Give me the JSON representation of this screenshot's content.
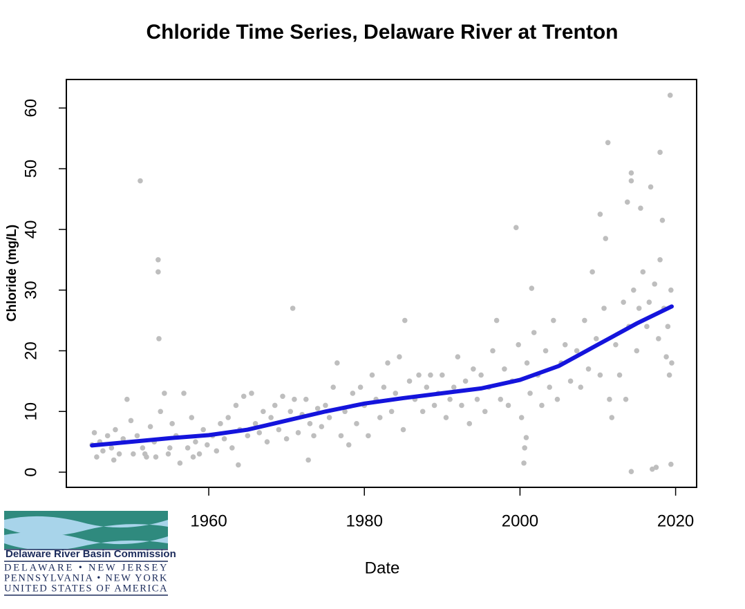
{
  "chart_data": {
    "type": "scatter",
    "title": "Chloride Time Series, Delaware River at Trenton",
    "x_label": "Date",
    "y_label": "Chloride (mg/L)",
    "xlim": [
      1941.7,
      2022.7
    ],
    "xticks": [
      1960,
      1980,
      2000,
      2020
    ],
    "ylim": [
      -2.5,
      64.7
    ],
    "yticks": [
      0,
      10,
      20,
      30,
      40,
      50,
      60
    ],
    "series": [
      {
        "type": "scatter",
        "color": "#bebebe",
        "x": [
          1945.0,
          1945.3,
          1945.6,
          1946.0,
          1946.4,
          1947.0,
          1947.5,
          1948.0,
          1948.5,
          1949.0,
          1949.5,
          1950.0,
          1950.3,
          1950.8,
          1951.5,
          1952.0,
          1952.5,
          1953.0,
          1953.8,
          1954.3,
          1954.8,
          1955.3,
          1955.8,
          1956.3,
          1956.8,
          1957.3,
          1957.8,
          1958.3,
          1958.8,
          1959.3,
          1959.8,
          1960.5,
          1961.0,
          1961.5,
          1962.0,
          1962.5,
          1963.0,
          1963.5,
          1964.0,
          1964.5,
          1965.0,
          1965.5,
          1966.0,
          1966.5,
          1967.0,
          1967.5,
          1968.0,
          1968.5,
          1969.0,
          1969.5,
          1970.0,
          1970.5,
          1971.0,
          1971.5,
          1972.0,
          1972.5,
          1973.0,
          1973.5,
          1974.0,
          1974.5,
          1975.0,
          1975.5,
          1976.0,
          1976.5,
          1977.0,
          1977.5,
          1978.0,
          1978.5,
          1979.0,
          1979.5,
          1980.0,
          1980.5,
          1981.0,
          1981.5,
          1982.0,
          1982.5,
          1983.0,
          1983.5,
          1984.0,
          1984.5,
          1985.0,
          1985.8,
          1986.5,
          1987.0,
          1987.5,
          1988.0,
          1988.5,
          1989.0,
          1989.5,
          1990.0,
          1990.5,
          1991.0,
          1991.5,
          1992.0,
          1992.5,
          1993.0,
          1993.5,
          1994.0,
          1994.5,
          1995.0,
          1995.5,
          1996.0,
          1996.5,
          1997.0,
          1997.5,
          1998.0,
          1998.5,
          1999.0,
          1999.8,
          2000.2,
          2000.9,
          2001.3,
          2001.8,
          2002.3,
          2002.8,
          2003.3,
          2003.8,
          2004.3,
          2004.8,
          2005.3,
          2005.8,
          2006.5,
          2007.3,
          2007.8,
          2008.3,
          2008.8,
          2009.3,
          2009.8,
          2010.3,
          2010.8,
          2011.5,
          2011.8,
          2012.3,
          2012.8,
          2013.3,
          2013.6,
          2014.0,
          2014.6,
          2015.0,
          2015.3,
          2015.8,
          2016.3,
          2016.6,
          2017.3,
          2017.8,
          2018.0,
          2018.5,
          2018.8,
          2019.0,
          2019.2,
          2019.4,
          2019.5,
          1947.8,
          1951.8,
          1953.2,
          1955.0,
          1958.0,
          1951.2,
          1953.5,
          1953.5,
          1953.6,
          1970.8,
          1985.2,
          1999.5,
          2011.3,
          2014.3,
          2014.3,
          2015.5,
          2016.8,
          2018.0,
          2019.3,
          2014.3,
          2017.0,
          2017.5,
          2019.4,
          2000.5,
          2000.6,
          2000.8,
          2001.5,
          2010.3,
          2011.0,
          2013.8,
          2018.3,
          1972.8,
          1963.8
        ],
        "values": [
          4.5,
          6.5,
          2.5,
          5,
          3.5,
          6,
          4,
          7,
          3,
          5.5,
          12,
          8.5,
          3,
          6,
          4,
          2.5,
          7.5,
          5,
          10,
          13,
          3,
          8,
          6,
          1.5,
          13,
          4,
          9,
          5,
          3,
          7,
          4.5,
          6,
          3.5,
          8,
          5.5,
          9,
          4,
          11,
          7,
          12.5,
          6,
          13,
          8,
          6.5,
          10,
          5,
          9,
          11,
          7,
          12.5,
          5.5,
          10,
          12,
          6.5,
          9.5,
          12,
          8,
          6,
          10.5,
          7.5,
          11,
          9,
          14,
          18,
          6,
          10,
          4.5,
          13,
          8,
          14,
          11,
          6,
          16,
          12,
          9,
          14,
          18,
          10,
          13,
          19,
          7,
          15,
          12,
          16,
          10,
          14,
          16,
          11,
          13,
          16,
          9,
          12,
          14,
          19,
          11,
          15,
          8,
          17,
          12,
          16,
          10,
          14,
          20,
          25,
          12,
          17,
          11,
          15,
          21,
          9,
          18,
          13,
          23,
          16,
          11,
          20,
          14,
          25,
          12,
          18,
          21,
          15,
          20,
          14,
          25,
          17,
          33,
          22,
          16,
          27,
          12,
          9,
          21,
          16,
          28,
          12,
          24,
          30,
          20,
          27,
          33,
          24,
          28,
          31,
          22,
          35,
          27,
          19,
          24,
          16,
          30,
          18,
          2,
          3,
          2.5,
          4,
          2.5,
          48,
          35,
          33,
          22,
          27,
          25,
          40.3,
          54.3,
          49.3,
          48,
          43.5,
          47,
          52.7,
          62.1,
          0.1,
          0.5,
          0.8,
          1.3,
          1.5,
          4,
          5.7,
          30.3,
          42.5,
          38.5,
          44.5,
          41.5,
          2,
          1.2
        ]
      },
      {
        "type": "line",
        "color": "#1414dc",
        "x": [
          1945,
          1950,
          1955,
          1960,
          1965,
          1970,
          1975,
          1980,
          1985,
          1990,
          1995,
          2000,
          2005,
          2010,
          2015,
          2019.5
        ],
        "values": [
          4.4,
          5.0,
          5.6,
          6.1,
          7.0,
          8.5,
          10.0,
          11.3,
          12.2,
          13.0,
          13.8,
          15.2,
          17.5,
          21.0,
          24.5,
          27.3
        ]
      }
    ]
  },
  "logo": {
    "name": "Delaware River Basin Commission",
    "line1": "DELAWARE • NEW JERSEY",
    "line2": "PENNSYLVANIA • NEW YORK",
    "line3": "UNITED STATES OF AMERICA"
  }
}
